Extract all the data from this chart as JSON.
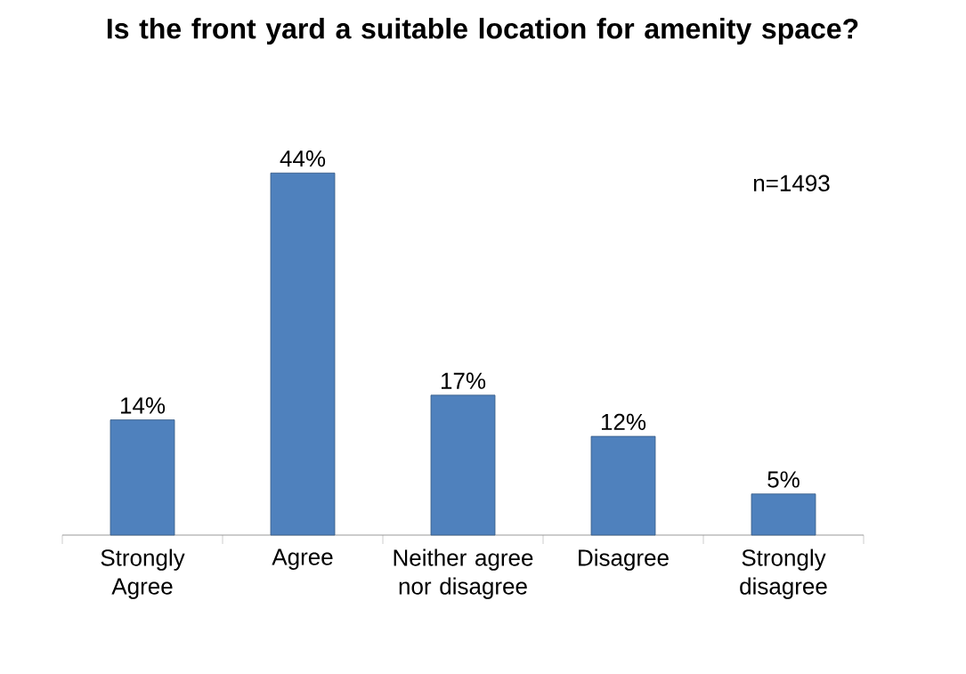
{
  "chart_data": {
    "type": "bar",
    "title": "Is the front yard a suitable location for amenity space?",
    "categories": [
      "Strongly Agree",
      "Agree",
      "Neither agree nor disagree",
      "Disagree",
      "Strongly disagree"
    ],
    "values": [
      14,
      44,
      17,
      12,
      5
    ],
    "value_labels": [
      "14%",
      "44%",
      "17%",
      "12%",
      "5%"
    ],
    "color": "#4f81bd",
    "annotations": [
      "n=1493"
    ]
  }
}
